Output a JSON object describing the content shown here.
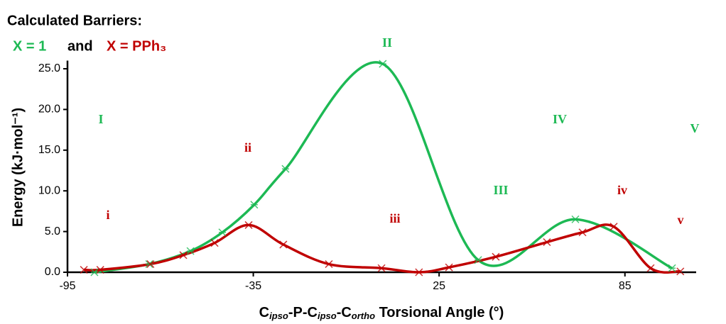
{
  "chart_data": {
    "type": "line",
    "title": "Calculated Barriers:",
    "legend_separator": "and",
    "ylabel": "Energy (kJ·mol⁻¹)",
    "xlabel_parts": [
      {
        "text": "C"
      },
      {
        "text": "ipso",
        "sub": true
      },
      {
        "text": "-P-C"
      },
      {
        "text": "ipso",
        "sub": true
      },
      {
        "text": "-C"
      },
      {
        "text": "ortho",
        "sub": true
      },
      {
        "text": " Torsional Angle (°)"
      }
    ],
    "xlim": [
      -95,
      108
    ],
    "xticks": [
      -95,
      -35,
      25,
      85
    ],
    "ylim": [
      0,
      26
    ],
    "yticks": [
      {
        "value": 0,
        "label": "0.0"
      },
      {
        "value": 5,
        "label": "5.0"
      },
      {
        "value": 10,
        "label": "10.0"
      },
      {
        "value": 15,
        "label": "15.0"
      },
      {
        "value": 20,
        "label": "20.0"
      },
      {
        "value": 25,
        "label": "25.0"
      }
    ],
    "series": [
      {
        "name": "X = 1",
        "color": "#1db954",
        "marker": "star",
        "x": [
          -86.3,
          -68.6,
          -55.3,
          -45,
          -34.7,
          -24.6,
          6.8,
          37.6,
          69,
          100.2
        ],
        "values": [
          0,
          1.0,
          2.6,
          4.9,
          8.3,
          12.7,
          25.6,
          1.5,
          6.5,
          0.5
        ]
      },
      {
        "name": "X = PPh₃",
        "color": "#c00000",
        "marker": "cross",
        "x": [
          -89.7,
          -84.4,
          -68.2,
          -57.6,
          -47.5,
          -36.5,
          -25.3,
          -10.6,
          6.4,
          18.5,
          28.2,
          43.3,
          59.8,
          71.3,
          81.4,
          93.3,
          102.9
        ],
        "values": [
          0.3,
          0.3,
          1.0,
          2.1,
          3.6,
          5.8,
          3.4,
          1.0,
          0.5,
          0,
          0.6,
          1.9,
          3.7,
          4.9,
          5.6,
          0.5,
          0.1
        ]
      }
    ],
    "annotations": [
      {
        "text": "I",
        "color": "#1db954"
      },
      {
        "text": "II",
        "color": "#1db954"
      },
      {
        "text": "III",
        "color": "#1db954"
      },
      {
        "text": "IV",
        "color": "#1db954"
      },
      {
        "text": "V",
        "color": "#1db954"
      },
      {
        "text": "i",
        "color": "#c00000"
      },
      {
        "text": "ii",
        "color": "#c00000"
      },
      {
        "text": "iii",
        "color": "#c00000"
      },
      {
        "text": "iv",
        "color": "#c00000"
      },
      {
        "text": "v",
        "color": "#c00000"
      }
    ]
  }
}
